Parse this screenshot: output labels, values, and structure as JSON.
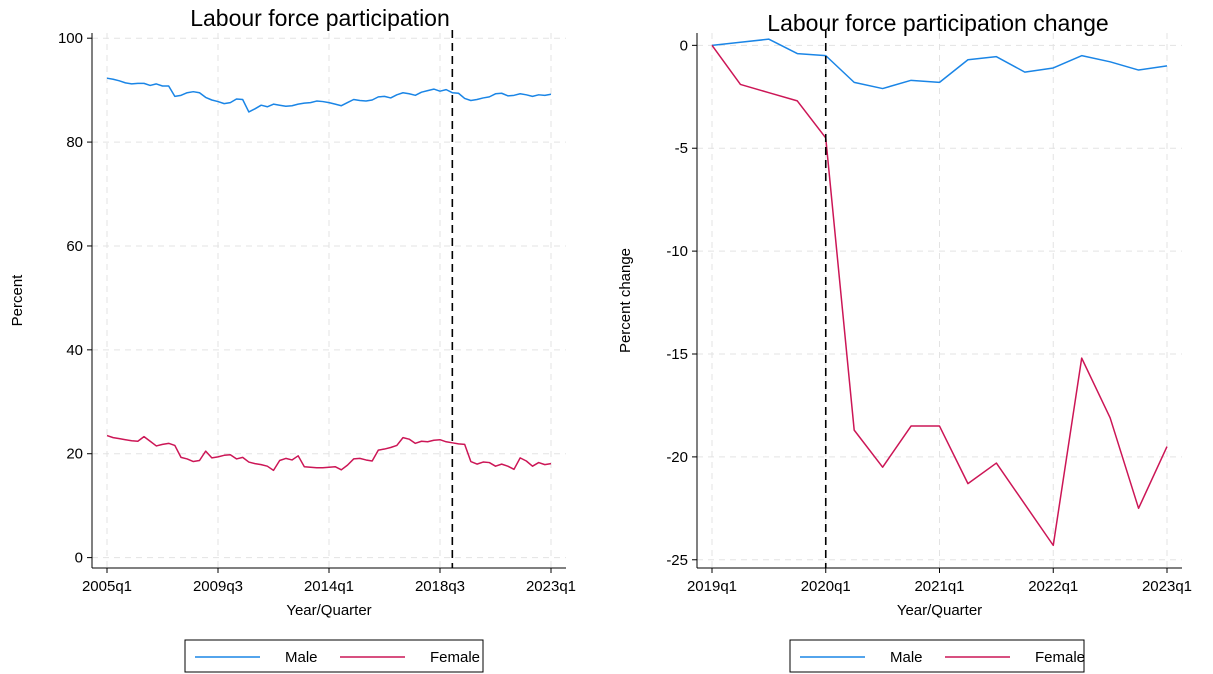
{
  "colors": {
    "male": "#1a85e6",
    "female": "#cc1656"
  },
  "chart_data": [
    {
      "type": "line",
      "title": "Labour force participation",
      "xlabel": "Year/Quarter",
      "ylabel": "Percent",
      "x_tick_labels": [
        "2005q1",
        "2009q3",
        "2014q1",
        "2018q3",
        "2023q1"
      ],
      "x_tick_positions": [
        0,
        18,
        36,
        54,
        72
      ],
      "xlim": [
        0,
        72
      ],
      "y_ticks": [
        0,
        20,
        40,
        60,
        80,
        100
      ],
      "ylim": [
        -2,
        101
      ],
      "grid": true,
      "vline": 56,
      "legend": {
        "position": "bottom",
        "entries": [
          "Male",
          "Female"
        ]
      },
      "series": [
        {
          "name": "Male",
          "color": "#1a85e6",
          "values": [
            92.3,
            92.1,
            91.8,
            91.4,
            91.2,
            91.3,
            91.3,
            90.9,
            91.2,
            90.8,
            90.8,
            88.8,
            89.0,
            89.5,
            89.7,
            89.5,
            88.6,
            88.1,
            87.8,
            87.4,
            87.6,
            88.3,
            88.2,
            85.8,
            86.4,
            87.1,
            86.8,
            87.3,
            87.1,
            86.9,
            87.0,
            87.3,
            87.5,
            87.6,
            87.9,
            87.8,
            87.6,
            87.3,
            87.0,
            87.6,
            88.2,
            88.0,
            87.9,
            88.1,
            88.7,
            88.8,
            88.5,
            89.1,
            89.5,
            89.3,
            89.0,
            89.6,
            89.9,
            90.2,
            89.8,
            90.1,
            89.5,
            89.4,
            88.4,
            88.0,
            88.2,
            88.5,
            88.7,
            89.3,
            89.4,
            88.9,
            89.0,
            89.3,
            89.1,
            88.8,
            89.1,
            89.0,
            89.2
          ]
        },
        {
          "name": "Female",
          "color": "#cc1656",
          "values": [
            23.5,
            23.1,
            22.9,
            22.7,
            22.5,
            22.4,
            23.3,
            22.4,
            21.5,
            21.8,
            22.0,
            21.6,
            19.3,
            19.0,
            18.5,
            18.7,
            20.5,
            19.2,
            19.4,
            19.7,
            19.8,
            19.0,
            19.3,
            18.4,
            18.1,
            17.9,
            17.6,
            16.8,
            18.7,
            19.1,
            18.8,
            19.6,
            17.5,
            17.4,
            17.3,
            17.3,
            17.4,
            17.5,
            16.9,
            17.8,
            19.0,
            19.1,
            18.8,
            18.6,
            20.7,
            20.9,
            21.2,
            21.6,
            23.1,
            22.8,
            22.0,
            22.4,
            22.3,
            22.6,
            22.7,
            22.3,
            22.1,
            21.9,
            21.8,
            18.5,
            18.0,
            18.4,
            18.3,
            17.6,
            18.0,
            17.6,
            17.0,
            19.2,
            18.6,
            17.6,
            18.3,
            17.9,
            18.1
          ]
        }
      ]
    },
    {
      "type": "line",
      "title": "Labour force participation change",
      "xlabel": "Year/Quarter",
      "ylabel": "Percent change",
      "x_tick_labels": [
        "2019q1",
        "2020q1",
        "2021q1",
        "2022q1",
        "2023q1"
      ],
      "x_tick_positions": [
        0,
        4,
        8,
        12,
        16
      ],
      "xlim": [
        0,
        16
      ],
      "y_ticks": [
        0,
        -5,
        -10,
        -15,
        -20,
        -25
      ],
      "ylim": [
        -25.4,
        0.6
      ],
      "grid": true,
      "vline": 4,
      "legend": {
        "position": "bottom",
        "entries": [
          "Male",
          "Female"
        ]
      },
      "series": [
        {
          "name": "Male",
          "color": "#1a85e6",
          "x": [
            0,
            1,
            2,
            3,
            4,
            5,
            6,
            7,
            8,
            9,
            10,
            11,
            12,
            13,
            14,
            15,
            16
          ],
          "values": [
            0,
            0.15,
            0.3,
            -0.4,
            -0.5,
            -1.8,
            -2.1,
            -1.7,
            -1.8,
            -0.7,
            -0.55,
            -1.3,
            -1.1,
            -0.5,
            -0.8,
            -1.2,
            -1.0
          ]
        },
        {
          "name": "Female",
          "color": "#cc1656",
          "x": [
            0,
            1,
            2,
            3,
            4,
            5,
            6,
            7,
            8,
            9,
            10,
            11,
            12,
            13,
            14,
            15,
            16
          ],
          "values": [
            0,
            -1.9,
            -2.3,
            -2.7,
            -4.5,
            -18.7,
            -20.5,
            -18.5,
            -18.5,
            -21.3,
            -20.3,
            -22.3,
            -24.3,
            -15.2,
            -18.1,
            -22.5,
            -19.5
          ]
        }
      ]
    }
  ]
}
